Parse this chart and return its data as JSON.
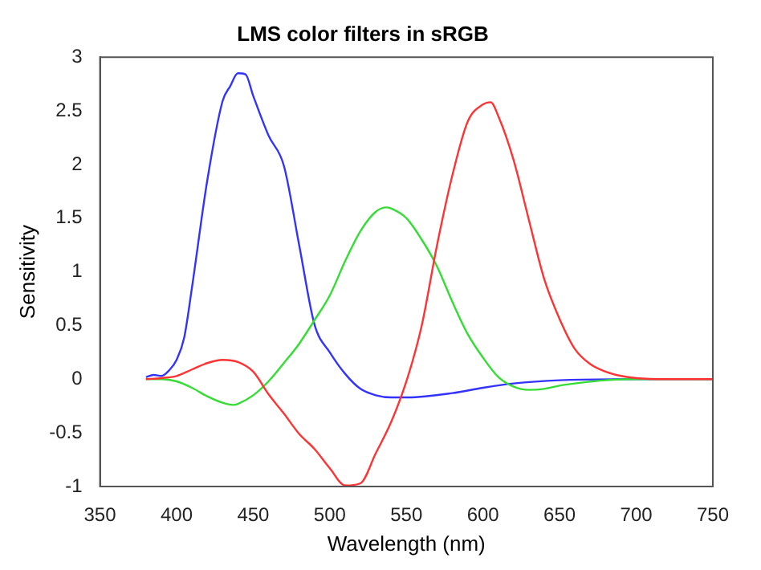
{
  "chart_data": {
    "type": "line",
    "title": "LMS color filters in sRGB",
    "xlabel": "Wavelength (nm)",
    "ylabel": "Sensitivity",
    "xlim": [
      350,
      750
    ],
    "xticks": [
      350,
      400,
      450,
      500,
      550,
      600,
      650,
      700,
      750
    ],
    "ylim": [
      -1,
      3
    ],
    "yticks": [
      -1,
      -0.5,
      0,
      0.5,
      1,
      1.5,
      2,
      2.5,
      3
    ],
    "grid": false,
    "legend": false,
    "marker": "none",
    "line_style": "solid",
    "series": [
      {
        "color": "#ff3333",
        "x": [
          380,
          390,
          400,
          410,
          420,
          430,
          440,
          450,
          460,
          470,
          480,
          490,
          500,
          510,
          520,
          530,
          540,
          550,
          560,
          570,
          580,
          590,
          600,
          605,
          610,
          620,
          630,
          640,
          650,
          660,
          670,
          680,
          690,
          700,
          720,
          750
        ],
        "values": [
          0,
          0.01,
          0.03,
          0.09,
          0.15,
          0.18,
          0.16,
          0.07,
          -0.14,
          -0.32,
          -0.51,
          -0.65,
          -0.83,
          -0.99,
          -0.97,
          -0.69,
          -0.4,
          -0.02,
          0.5,
          1.25,
          1.9,
          2.4,
          2.56,
          2.58,
          2.45,
          2.04,
          1.48,
          0.93,
          0.56,
          0.28,
          0.14,
          0.07,
          0.03,
          0.01,
          0,
          0
        ]
      },
      {
        "color": "#33dd33",
        "x": [
          380,
          390,
          400,
          410,
          420,
          430,
          437,
          440,
          450,
          460,
          470,
          480,
          490,
          500,
          510,
          520,
          530,
          537,
          540,
          550,
          560,
          570,
          580,
          590,
          600,
          610,
          620,
          630,
          640,
          650,
          660,
          680,
          700,
          750
        ],
        "values": [
          0,
          0,
          -0.02,
          -0.08,
          -0.16,
          -0.22,
          -0.24,
          -0.23,
          -0.15,
          -0.02,
          0.15,
          0.33,
          0.55,
          0.78,
          1.1,
          1.38,
          1.56,
          1.6,
          1.59,
          1.5,
          1.3,
          1.05,
          0.72,
          0.42,
          0.2,
          0.02,
          -0.07,
          -0.1,
          -0.09,
          -0.06,
          -0.04,
          -0.01,
          0,
          0
        ]
      },
      {
        "color": "#3333ff",
        "x": [
          380,
          385,
          390,
          395,
          400,
          405,
          410,
          420,
          430,
          435,
          440,
          445,
          450,
          460,
          470,
          480,
          490,
          500,
          510,
          520,
          530,
          540,
          550,
          580,
          600,
          620,
          650,
          700,
          750
        ],
        "values": [
          0.02,
          0.04,
          0.03,
          0.08,
          0.18,
          0.39,
          0.85,
          1.85,
          2.59,
          2.73,
          2.85,
          2.84,
          2.64,
          2.27,
          1.99,
          1.25,
          0.51,
          0.25,
          0.05,
          -0.09,
          -0.15,
          -0.17,
          -0.17,
          -0.13,
          -0.08,
          -0.04,
          -0.01,
          0,
          0
        ]
      }
    ]
  }
}
